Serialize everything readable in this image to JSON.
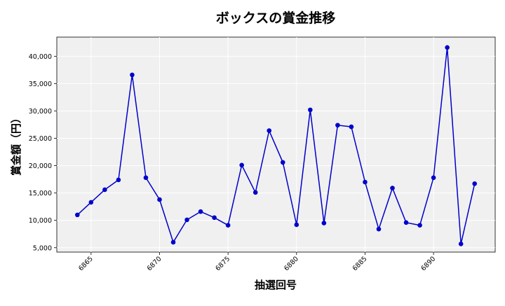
{
  "chart_data": {
    "type": "line",
    "title": "ボックスの賞金推移",
    "xlabel": "抽選回号",
    "ylabel": "賞金額（円）",
    "xlim": [
      6862.5,
      6894.5
    ],
    "ylim": [
      4200,
      43500
    ],
    "x_ticks": [
      6865,
      6870,
      6875,
      6880,
      6885,
      6890
    ],
    "x_tick_labels": [
      "6865",
      "6870",
      "6875",
      "6880",
      "6885",
      "6890"
    ],
    "y_ticks": [
      5000,
      10000,
      15000,
      20000,
      25000,
      30000,
      35000,
      40000
    ],
    "y_tick_labels": [
      "5,000",
      "10,000",
      "15,000",
      "20,000",
      "25,000",
      "30,000",
      "35,000",
      "40,000"
    ],
    "grid": true,
    "line_color": "#0000cc",
    "marker_color": "#0000cc",
    "plot_background": "#f0f0f0",
    "series": [
      {
        "x": [
          6864,
          6865,
          6866,
          6867,
          6868,
          6869,
          6870,
          6871,
          6872,
          6873,
          6874,
          6875,
          6876,
          6877,
          6878,
          6879,
          6880,
          6881,
          6882,
          6883,
          6884,
          6885,
          6886,
          6887,
          6888,
          6889,
          6890,
          6891,
          6892,
          6893
        ],
        "values": [
          11000,
          13300,
          15600,
          17400,
          36600,
          17800,
          13800,
          6000,
          10100,
          11600,
          10500,
          9100,
          20100,
          15100,
          26400,
          20600,
          9200,
          30200,
          9500,
          27400,
          27100,
          17000,
          8400,
          15900,
          9600,
          9100,
          17800,
          41600,
          5700,
          16700
        ]
      }
    ]
  }
}
